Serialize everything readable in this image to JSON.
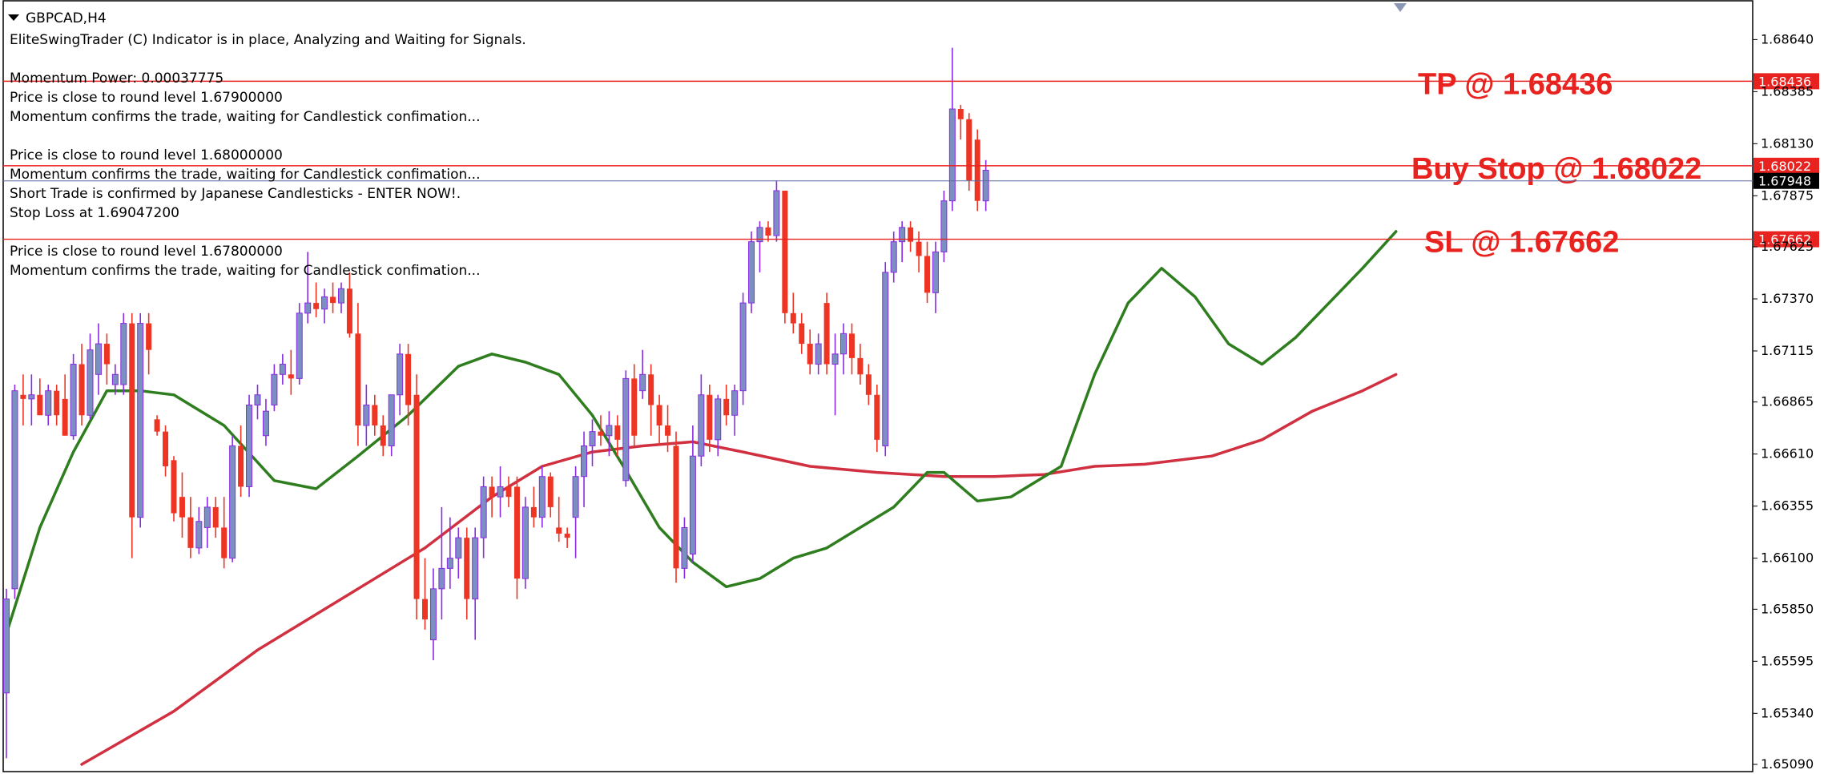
{
  "symbol_title": "GBPCAD,H4",
  "info_lines": [
    "EliteSwingTrader (C) Indicator is in place, Analyzing and Waiting for Signals.",
    "Momentum Power: 0.00037775",
    "Price is close to round level 1.67900000",
    "Momentum confirms the trade, waiting for Candlestick confimation...",
    "Price is close to round level 1.68000000",
    "Momentum confirms the trade, waiting for Candlestick confimation...",
    "Short Trade is confirmed by Japanese Candlesticks - ENTER NOW!.",
    "Stop Loss at 1.69047200",
    "Price is close to round level 1.67800000",
    "Momentum confirms the trade, waiting for Candlestick confimation..."
  ],
  "colors": {
    "bull": "#7b8fc2",
    "bull_wick": "#8a2be2",
    "bear": "#ee3524",
    "fast_ma": "#2e7d1e",
    "slow_ma": "#d03040",
    "level": "#e8231f",
    "current": "#5c6aa0"
  },
  "chart_data": {
    "type": "candlestick",
    "title": "GBPCAD,H4",
    "ylim": [
      1.6509,
      1.6872
    ],
    "y_ticks": [
      1.6864,
      1.68385,
      1.6813,
      1.67875,
      1.67625,
      1.6737,
      1.67115,
      1.66865,
      1.6661,
      1.66355,
      1.661,
      1.6585,
      1.65595,
      1.6534,
      1.6509
    ],
    "y_tick_labels": [
      "1.68640",
      "1.68385",
      "1.68130",
      "1.67875",
      "1.67625",
      "1.67370",
      "1.67115",
      "1.66865",
      "1.66610",
      "1.66355",
      "1.66100",
      "1.65850",
      "1.65595",
      "1.65340",
      "1.65090"
    ],
    "levels": [
      {
        "price": 1.68436,
        "label": "1.68436",
        "annotation": "TP @ 1.68436"
      },
      {
        "price": 1.68022,
        "label": "1.68022",
        "annotation": "Buy Stop @ 1.68022"
      },
      {
        "price": 1.67662,
        "label": "1.67662",
        "annotation": "SL @ 1.67662"
      }
    ],
    "current_price": {
      "price": 1.67948,
      "label": "1.67948"
    },
    "candles": [
      [
        1.6544,
        1.6595,
        1.6512,
        1.659
      ],
      [
        1.6595,
        1.6695,
        1.659,
        1.6692
      ],
      [
        1.669,
        1.67,
        1.6675,
        1.6688
      ],
      [
        1.6688,
        1.67,
        1.6675,
        1.669
      ],
      [
        1.669,
        1.6698,
        1.668,
        1.668
      ],
      [
        1.668,
        1.6695,
        1.6675,
        1.6692
      ],
      [
        1.6692,
        1.6695,
        1.6675,
        1.668
      ],
      [
        1.6688,
        1.67,
        1.667,
        1.667
      ],
      [
        1.667,
        1.671,
        1.6668,
        1.6705
      ],
      [
        1.6705,
        1.6715,
        1.6675,
        1.668
      ],
      [
        1.668,
        1.672,
        1.6678,
        1.6712
      ],
      [
        1.67,
        1.6725,
        1.669,
        1.6715
      ],
      [
        1.6715,
        1.672,
        1.6695,
        1.6705
      ],
      [
        1.6695,
        1.6705,
        1.669,
        1.67
      ],
      [
        1.6695,
        1.673,
        1.669,
        1.6725
      ],
      [
        1.6725,
        1.673,
        1.661,
        1.663
      ],
      [
        1.663,
        1.673,
        1.6625,
        1.6725
      ],
      [
        1.6725,
        1.673,
        1.67,
        1.6712
      ],
      [
        1.6678,
        1.668,
        1.667,
        1.6672
      ],
      [
        1.6672,
        1.6675,
        1.665,
        1.6655
      ],
      [
        1.6658,
        1.666,
        1.6628,
        1.6632
      ],
      [
        1.664,
        1.6652,
        1.662,
        1.663
      ],
      [
        1.663,
        1.664,
        1.661,
        1.6615
      ],
      [
        1.6615,
        1.6635,
        1.6612,
        1.6628
      ],
      [
        1.6625,
        1.664,
        1.6615,
        1.6635
      ],
      [
        1.6635,
        1.664,
        1.662,
        1.6625
      ],
      [
        1.6625,
        1.664,
        1.6605,
        1.661
      ],
      [
        1.661,
        1.667,
        1.6608,
        1.6665
      ],
      [
        1.6665,
        1.6675,
        1.664,
        1.6645
      ],
      [
        1.6645,
        1.669,
        1.664,
        1.6685
      ],
      [
        1.6685,
        1.6695,
        1.6678,
        1.669
      ],
      [
        1.667,
        1.6688,
        1.6665,
        1.6682
      ],
      [
        1.6685,
        1.6705,
        1.6682,
        1.67
      ],
      [
        1.67,
        1.671,
        1.6695,
        1.6705
      ],
      [
        1.67,
        1.6712,
        1.669,
        1.6698
      ],
      [
        1.6698,
        1.6735,
        1.6695,
        1.673
      ],
      [
        1.673,
        1.676,
        1.6725,
        1.6735
      ],
      [
        1.6735,
        1.6745,
        1.6728,
        1.6732
      ],
      [
        1.6732,
        1.6742,
        1.6725,
        1.6738
      ],
      [
        1.6738,
        1.6745,
        1.673,
        1.6735
      ],
      [
        1.6735,
        1.6745,
        1.673,
        1.6742
      ],
      [
        1.6742,
        1.675,
        1.6718,
        1.672
      ],
      [
        1.672,
        1.6735,
        1.6665,
        1.6675
      ],
      [
        1.6675,
        1.6695,
        1.6665,
        1.6685
      ],
      [
        1.6685,
        1.669,
        1.667,
        1.6675
      ],
      [
        1.6675,
        1.668,
        1.666,
        1.6665
      ],
      [
        1.6665,
        1.669,
        1.666,
        1.669
      ],
      [
        1.669,
        1.6715,
        1.668,
        1.671
      ],
      [
        1.671,
        1.6715,
        1.6675,
        1.6685
      ],
      [
        1.669,
        1.67,
        1.658,
        1.659
      ],
      [
        1.659,
        1.661,
        1.6575,
        1.658
      ],
      [
        1.657,
        1.6605,
        1.656,
        1.6595
      ],
      [
        1.6595,
        1.6635,
        1.658,
        1.6605
      ],
      [
        1.6605,
        1.663,
        1.6595,
        1.661
      ],
      [
        1.661,
        1.6625,
        1.66,
        1.662
      ],
      [
        1.662,
        1.6625,
        1.658,
        1.659
      ],
      [
        1.659,
        1.6625,
        1.657,
        1.662
      ],
      [
        1.662,
        1.665,
        1.661,
        1.6645
      ],
      [
        1.6645,
        1.665,
        1.663,
        1.664
      ],
      [
        1.664,
        1.6655,
        1.663,
        1.6645
      ],
      [
        1.6645,
        1.665,
        1.6635,
        1.664
      ],
      [
        1.6645,
        1.665,
        1.659,
        1.66
      ],
      [
        1.66,
        1.664,
        1.6595,
        1.6635
      ],
      [
        1.6635,
        1.6645,
        1.6625,
        1.663
      ],
      [
        1.663,
        1.6655,
        1.6625,
        1.665
      ],
      [
        1.665,
        1.6652,
        1.663,
        1.6635
      ],
      [
        1.6625,
        1.664,
        1.6618,
        1.6622
      ],
      [
        1.6622,
        1.6625,
        1.6615,
        1.662
      ],
      [
        1.663,
        1.6655,
        1.661,
        1.665
      ],
      [
        1.665,
        1.6672,
        1.6635,
        1.6665
      ],
      [
        1.6665,
        1.6678,
        1.6655,
        1.6672
      ],
      [
        1.6672,
        1.668,
        1.6665,
        1.667
      ],
      [
        1.667,
        1.6682,
        1.666,
        1.6675
      ],
      [
        1.6675,
        1.668,
        1.666,
        1.6668
      ],
      [
        1.6648,
        1.6702,
        1.6645,
        1.6698
      ],
      [
        1.6698,
        1.6705,
        1.6665,
        1.667
      ],
      [
        1.6692,
        1.6712,
        1.6688,
        1.67
      ],
      [
        1.67,
        1.6705,
        1.667,
        1.6685
      ],
      [
        1.6685,
        1.669,
        1.6665,
        1.6675
      ],
      [
        1.6675,
        1.6685,
        1.6662,
        1.667
      ],
      [
        1.6665,
        1.6672,
        1.6598,
        1.6605
      ],
      [
        1.6605,
        1.663,
        1.66,
        1.6625
      ],
      [
        1.6612,
        1.6675,
        1.6608,
        1.666
      ],
      [
        1.666,
        1.67,
        1.6655,
        1.669
      ],
      [
        1.669,
        1.6695,
        1.6662,
        1.6668
      ],
      [
        1.6668,
        1.669,
        1.666,
        1.6688
      ],
      [
        1.6688,
        1.6695,
        1.6675,
        1.668
      ],
      [
        1.668,
        1.6695,
        1.667,
        1.6692
      ],
      [
        1.6692,
        1.674,
        1.6685,
        1.6735
      ],
      [
        1.6735,
        1.677,
        1.673,
        1.6765
      ],
      [
        1.6765,
        1.6775,
        1.675,
        1.6772
      ],
      [
        1.6772,
        1.6775,
        1.6765,
        1.6768
      ],
      [
        1.6768,
        1.6795,
        1.6765,
        1.679
      ],
      [
        1.679,
        1.679,
        1.6725,
        1.673
      ],
      [
        1.673,
        1.674,
        1.672,
        1.6725
      ],
      [
        1.6725,
        1.673,
        1.671,
        1.6715
      ],
      [
        1.6715,
        1.6722,
        1.67,
        1.6705
      ],
      [
        1.6705,
        1.672,
        1.67,
        1.6715
      ],
      [
        1.6735,
        1.674,
        1.67,
        1.6705
      ],
      [
        1.6705,
        1.672,
        1.668,
        1.671
      ],
      [
        1.671,
        1.6725,
        1.67,
        1.672
      ],
      [
        1.672,
        1.6725,
        1.67,
        1.6708
      ],
      [
        1.6708,
        1.6715,
        1.6695,
        1.67
      ],
      [
        1.67,
        1.6705,
        1.6685,
        1.669
      ],
      [
        1.669,
        1.6695,
        1.6662,
        1.6668
      ],
      [
        1.6665,
        1.6755,
        1.666,
        1.675
      ],
      [
        1.675,
        1.677,
        1.6745,
        1.6765
      ],
      [
        1.6765,
        1.6775,
        1.6755,
        1.6772
      ],
      [
        1.6772,
        1.6775,
        1.676,
        1.6765
      ],
      [
        1.6765,
        1.677,
        1.675,
        1.6758
      ],
      [
        1.6758,
        1.6765,
        1.6735,
        1.674
      ],
      [
        1.674,
        1.6765,
        1.673,
        1.676
      ],
      [
        1.676,
        1.679,
        1.6755,
        1.6785
      ],
      [
        1.6785,
        1.686,
        1.678,
        1.683
      ],
      [
        1.683,
        1.6832,
        1.6815,
        1.6825
      ],
      [
        1.6825,
        1.6828,
        1.679,
        1.6795
      ],
      [
        1.6815,
        1.682,
        1.678,
        1.6785
      ],
      [
        1.6785,
        1.6805,
        1.678,
        1.68
      ]
    ],
    "fast_ma": [
      [
        0,
        1.6573
      ],
      [
        4,
        1.6625
      ],
      [
        8,
        1.6662
      ],
      [
        12,
        1.6692
      ],
      [
        16,
        1.6692
      ],
      [
        20,
        1.669
      ],
      [
        26,
        1.6675
      ],
      [
        32,
        1.6648
      ],
      [
        37,
        1.6644
      ],
      [
        42,
        1.666
      ],
      [
        48,
        1.668
      ],
      [
        54,
        1.6704
      ],
      [
        58,
        1.671
      ],
      [
        62,
        1.6706
      ],
      [
        66,
        1.67
      ],
      [
        70,
        1.668
      ],
      [
        74,
        1.6653
      ],
      [
        78,
        1.6625
      ],
      [
        82,
        1.6608
      ],
      [
        86,
        1.6596
      ],
      [
        90,
        1.66
      ],
      [
        94,
        1.661
      ],
      [
        98,
        1.6615
      ],
      [
        102,
        1.6625
      ],
      [
        106,
        1.6635
      ],
      [
        110,
        1.6652
      ],
      [
        112,
        1.6652
      ],
      [
        116,
        1.6638
      ],
      [
        120,
        1.664
      ],
      [
        126,
        1.6655
      ],
      [
        130,
        1.67
      ],
      [
        134,
        1.6735
      ],
      [
        138,
        1.6752
      ],
      [
        142,
        1.6738
      ],
      [
        146,
        1.6715
      ],
      [
        150,
        1.6705
      ],
      [
        154,
        1.6718
      ],
      [
        158,
        1.6735
      ],
      [
        162,
        1.6752
      ],
      [
        166,
        1.677
      ]
    ],
    "slow_ma": [
      [
        9,
        1.6509
      ],
      [
        20,
        1.6535
      ],
      [
        30,
        1.6565
      ],
      [
        40,
        1.659
      ],
      [
        50,
        1.6615
      ],
      [
        58,
        1.664
      ],
      [
        64,
        1.6655
      ],
      [
        70,
        1.6662
      ],
      [
        76,
        1.6665
      ],
      [
        82,
        1.6667
      ],
      [
        88,
        1.6662
      ],
      [
        96,
        1.6655
      ],
      [
        104,
        1.6652
      ],
      [
        112,
        1.665
      ],
      [
        118,
        1.665
      ],
      [
        124,
        1.6651
      ],
      [
        130,
        1.6655
      ],
      [
        136,
        1.6656
      ],
      [
        144,
        1.666
      ],
      [
        150,
        1.6668
      ],
      [
        156,
        1.6682
      ],
      [
        162,
        1.6692
      ],
      [
        166,
        1.67
      ]
    ]
  }
}
